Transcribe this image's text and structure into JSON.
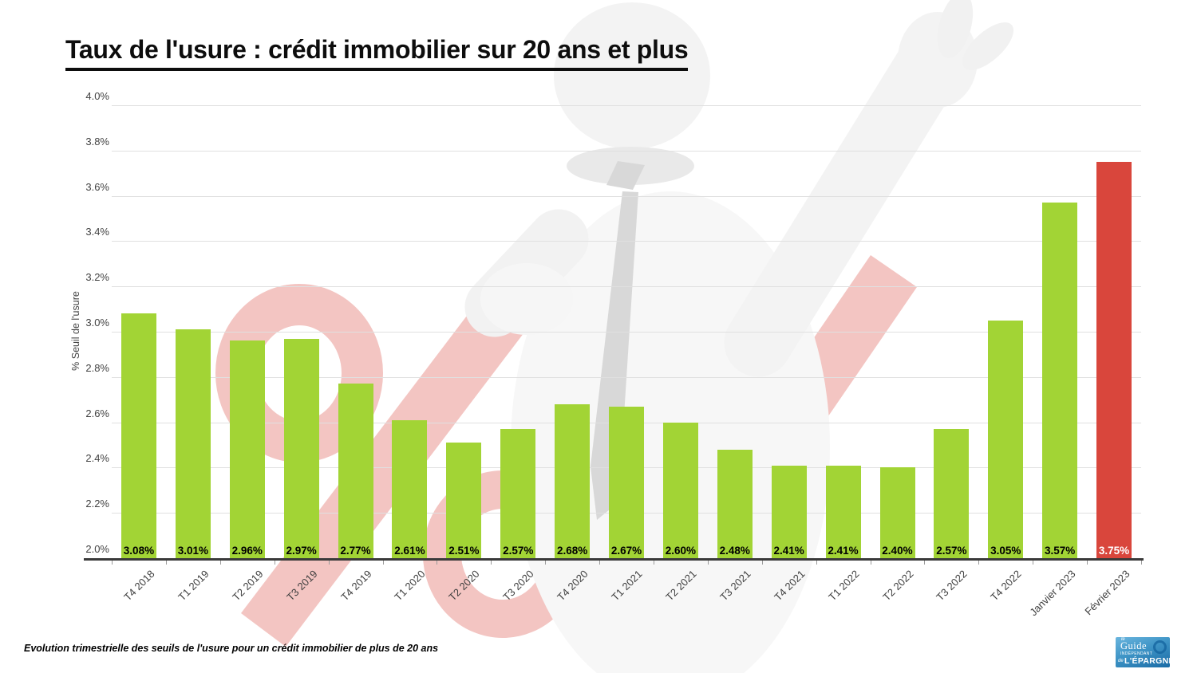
{
  "title": "Taux de l'usure : crédit immobilier sur 20 ans et plus",
  "caption": "Evolution trimestrielle des seuils de l'usure pour un crédit immobilier de plus de 20 ans",
  "logo": {
    "le": "le",
    "guide": "Guide",
    "independant": "INDÉPENDANT",
    "de": "de",
    "epargne": "L'ÉPARGNE"
  },
  "colors": {
    "bar_green": "#a2d435",
    "bar_red": "#d9463c",
    "gridline": "#e0e0e0",
    "axis_line": "#3a3a3a",
    "tick": "#9a9a9a",
    "axis_label": "#424242",
    "value_label": "#000000",
    "value_label_on_red": "#ffffff",
    "watermark_pink": "#f3c5c2",
    "watermark_gray": "#f6f6f6",
    "watermark_tie": "#d8d8d8"
  },
  "chart_data": {
    "type": "bar",
    "title": "Taux de l'usure : crédit immobilier sur 20 ans et plus",
    "xlabel": "",
    "ylabel": "% Seuil de l'usure",
    "ylim": [
      2.0,
      4.0
    ],
    "ytick_step": 0.2,
    "ytick_labels": [
      "2.0%",
      "2.2%",
      "2.4%",
      "2.6%",
      "2.8%",
      "3.0%",
      "3.2%",
      "3.4%",
      "3.6%",
      "3.8%",
      "4.0%"
    ],
    "grid": true,
    "legend": "none",
    "categories": [
      "T4 2018",
      "T1 2019",
      "T2 2019",
      "T3 2019",
      "T4 2019",
      "T1 2020",
      "T2 2020",
      "T3 2020",
      "T4 2020",
      "T1 2021",
      "T2 2021",
      "T3 2021",
      "T4 2021",
      "T1 2022",
      "T2 2022",
      "T3 2022",
      "T4 2022",
      "Janvier 2023",
      "Février 2023"
    ],
    "values": [
      3.08,
      3.01,
      2.96,
      2.97,
      2.77,
      2.61,
      2.51,
      2.57,
      2.68,
      2.67,
      2.6,
      2.48,
      2.41,
      2.41,
      2.4,
      2.57,
      3.05,
      3.57,
      3.75
    ],
    "value_labels": [
      "3.08%",
      "3.01%",
      "2.96%",
      "2.97%",
      "2.77%",
      "2.61%",
      "2.51%",
      "2.57%",
      "2.68%",
      "2.67%",
      "2.60%",
      "2.48%",
      "2.41%",
      "2.41%",
      "2.40%",
      "2.57%",
      "3.05%",
      "3.57%",
      "3.75%"
    ],
    "bar_colors": [
      "#a2d435",
      "#a2d435",
      "#a2d435",
      "#a2d435",
      "#a2d435",
      "#a2d435",
      "#a2d435",
      "#a2d435",
      "#a2d435",
      "#a2d435",
      "#a2d435",
      "#a2d435",
      "#a2d435",
      "#a2d435",
      "#a2d435",
      "#a2d435",
      "#a2d435",
      "#a2d435",
      "#d9463c"
    ]
  }
}
